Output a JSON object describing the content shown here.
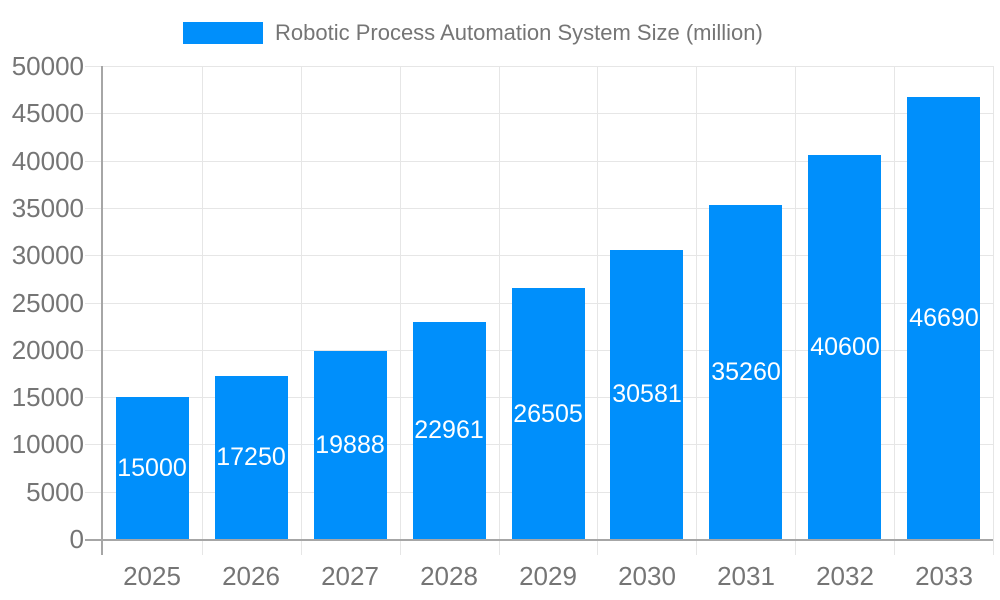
{
  "chart_data": {
    "type": "bar",
    "title": "Robotic Process Automation System Size (million)",
    "categories": [
      "2025",
      "2026",
      "2027",
      "2028",
      "2029",
      "2030",
      "2031",
      "2032",
      "2033"
    ],
    "values": [
      15000,
      17250,
      19888,
      22961,
      26505,
      30581,
      35260,
      40600,
      46690
    ],
    "series_name": "Robotic Process Automation System Size (million)",
    "xlabel": "",
    "ylabel": "",
    "ylim": [
      0,
      50000
    ],
    "ytick_step": 5000,
    "grid": true,
    "legend_position": "top",
    "bar_color": "#008FFB",
    "value_label_color": "#ffffff",
    "axis_text_color": "#757575",
    "gridline_color": "#e6e6e6",
    "axis_line_color": "#a6a6a6"
  }
}
